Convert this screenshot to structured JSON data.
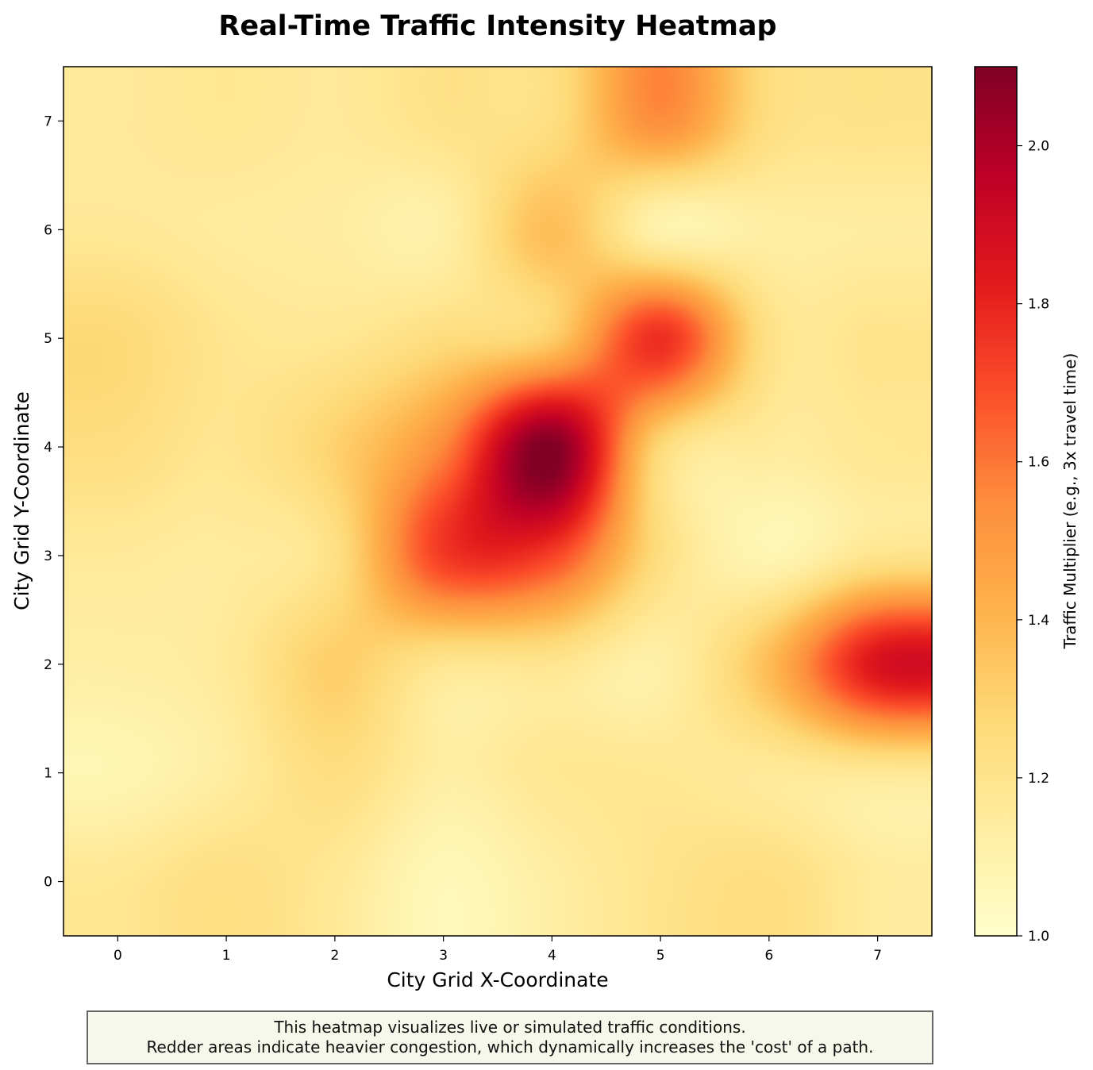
{
  "chart_data": {
    "type": "heatmap",
    "title": "Real-Time Traffic Intensity Heatmap",
    "xlabel": "City Grid X-Coordinate",
    "ylabel": "City Grid Y-Coordinate",
    "x": [
      0,
      1,
      2,
      3,
      4,
      5,
      6,
      7
    ],
    "y": [
      0,
      1,
      2,
      3,
      4,
      5,
      6,
      7
    ],
    "xlim": [
      -0.5,
      7.5
    ],
    "ylim": [
      -0.5,
      7.5
    ],
    "interpolation": "bicubic",
    "colormap": "YlOrRd",
    "values": [
      [
        1.18,
        1.23,
        1.17,
        1.06,
        1.13,
        1.2,
        1.24,
        1.15
      ],
      [
        1.08,
        1.14,
        1.24,
        1.13,
        1.18,
        1.18,
        1.16,
        1.17
      ],
      [
        1.13,
        1.16,
        1.31,
        1.19,
        1.19,
        1.12,
        1.38,
        1.86
      ],
      [
        1.16,
        1.15,
        1.23,
        1.74,
        1.72,
        1.24,
        1.08,
        1.2
      ],
      [
        1.24,
        1.19,
        1.3,
        1.56,
        2.1,
        1.27,
        1.15,
        1.18
      ],
      [
        1.27,
        1.19,
        1.18,
        1.25,
        1.32,
        1.77,
        1.22,
        1.2
      ],
      [
        1.17,
        1.15,
        1.14,
        1.12,
        1.37,
        1.1,
        1.13,
        1.14
      ],
      [
        1.16,
        1.18,
        1.16,
        1.21,
        1.24,
        1.54,
        1.24,
        1.21
      ]
    ],
    "colorbar": {
      "label": "Traffic Multiplier (e.g., 3x travel time)",
      "min": 1.0,
      "max": 2.1,
      "ticks": [
        1.0,
        1.2,
        1.4,
        1.6,
        1.8,
        2.0
      ]
    },
    "grid": false,
    "colors": [
      "#ffffcc",
      "#ffeda0",
      "#fed976",
      "#feb24c",
      "#fd8d3c",
      "#fc4e2a",
      "#e31a1c",
      "#bd0026",
      "#800026"
    ]
  },
  "note": {
    "line1": "This heatmap visualizes live or simulated traffic conditions.",
    "line2": "Redder areas indicate heavier congestion, which dynamically increases the 'cost' of a path."
  }
}
